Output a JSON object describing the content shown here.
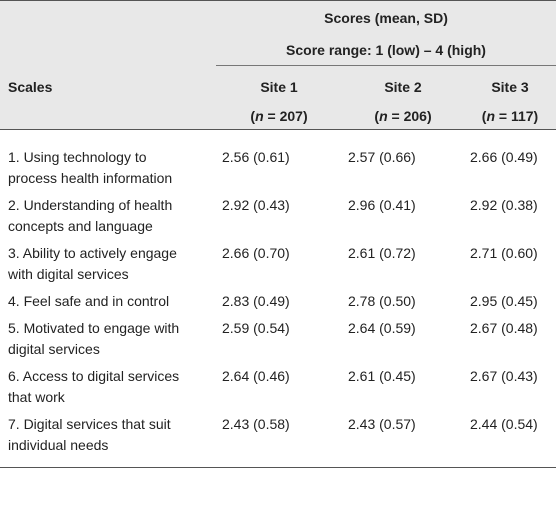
{
  "table": {
    "header": {
      "scales": "Scales",
      "scores": "Scores (mean, SD)",
      "score_range": "Score range: 1 (low) – 4 (high)",
      "sites": [
        {
          "name": "Site 1",
          "n": "(n = 207)"
        },
        {
          "name": "Site 2",
          "n": "(n = 206)"
        },
        {
          "name": "Site 3",
          "n": "(n = 117)"
        }
      ]
    },
    "rows": [
      [
        "1. Using technology to process health information",
        "2.56 (0.61)",
        "2.57 (0.66)",
        "2.66 (0.49)"
      ],
      [
        "2. Understanding of health concepts and language",
        "2.92 (0.43)",
        "2.96 (0.41)",
        "2.92 (0.38)"
      ],
      [
        "3. Ability to actively engage with digital services",
        "2.66 (0.70)",
        "2.61 (0.72)",
        "2.71 (0.60)"
      ],
      [
        "4. Feel safe and in control",
        "2.83 (0.49)",
        "2.78 (0.50)",
        "2.95 (0.45)"
      ],
      [
        "5. Motivated to engage with digital services",
        "2.59 (0.54)",
        "2.64 (0.59)",
        "2.67 (0.48)"
      ],
      [
        "6. Access to digital services that work",
        "2.64 (0.46)",
        "2.61 (0.45)",
        "2.67 (0.43)"
      ],
      [
        "7. Digital services that suit individual needs",
        "2.43 (0.58)",
        "2.43 (0.57)",
        "2.44 (0.54)"
      ]
    ]
  }
}
